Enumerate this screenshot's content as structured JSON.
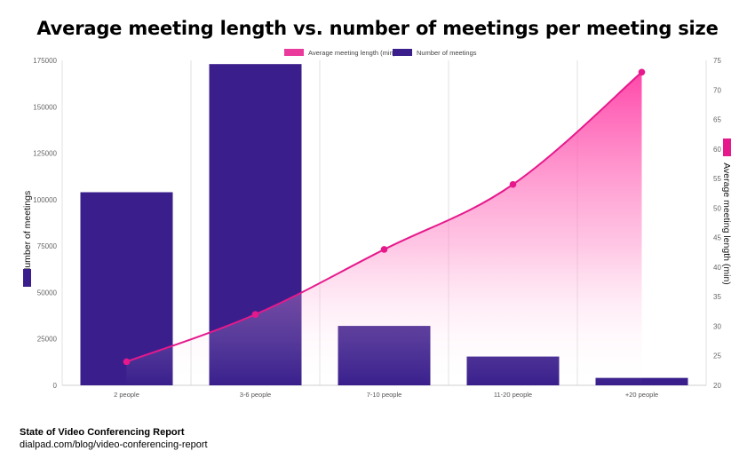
{
  "chart_data": {
    "type": "bar",
    "title": "Average meeting length vs. number of meetings per meeting size",
    "categories": [
      "2 people",
      "3-6 people",
      "7-10 people",
      "11-20 people",
      "+20 people"
    ],
    "series": [
      {
        "name": "Number of meetings",
        "type": "bar",
        "axis": "left",
        "color": "#3a1f8c",
        "values": [
          104000,
          173000,
          32000,
          15500,
          4000
        ]
      },
      {
        "name": "Average meeting length (min)",
        "type": "area-line",
        "axis": "right",
        "color": "#e6198c",
        "values": [
          24,
          32,
          43,
          54,
          73
        ]
      }
    ],
    "y_left": {
      "label": "Number of meetings",
      "range": [
        0,
        175000
      ],
      "ticks": [
        "0",
        "25000",
        "50000",
        "75000",
        "100000",
        "125000",
        "150000",
        "175000"
      ]
    },
    "y_right": {
      "label": "Average meeting length (min)",
      "range": [
        20,
        75
      ],
      "ticks": [
        "20",
        "25",
        "30",
        "35",
        "40",
        "45",
        "50",
        "55",
        "60",
        "65",
        "70",
        "75"
      ]
    },
    "legend_position": "top-center",
    "grid": "vertical category separators"
  },
  "footer": {
    "source": "State of Video Conferencing Report",
    "url": "dialpad.com/blog/video-conferencing-report"
  }
}
